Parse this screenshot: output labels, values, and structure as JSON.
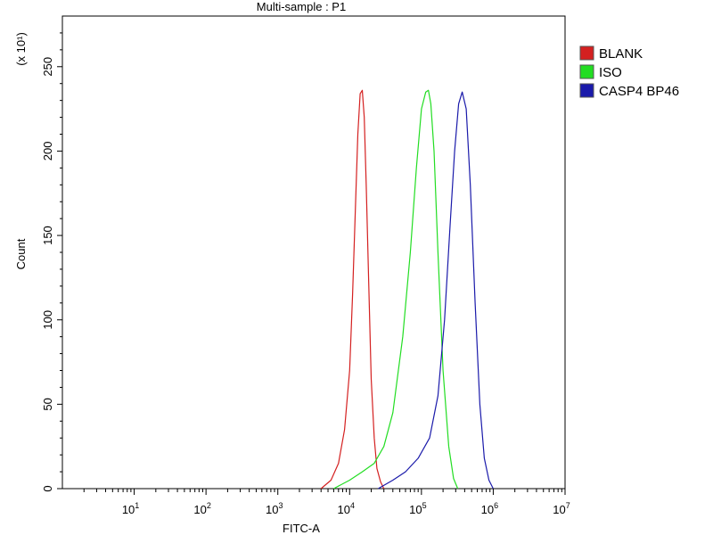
{
  "chart_data": {
    "type": "line",
    "title": "Multi-sample : P1",
    "xlabel": "FITC-A",
    "ylabel": "Count",
    "y_multiplier": "(x 10¹)",
    "x_scale": "log",
    "xlim": [
      1,
      10000000
    ],
    "ylim": [
      0,
      280
    ],
    "x_ticks": [
      {
        "value": 10,
        "base": "10",
        "exp": "1"
      },
      {
        "value": 100,
        "base": "10",
        "exp": "2"
      },
      {
        "value": 1000,
        "base": "10",
        "exp": "3"
      },
      {
        "value": 10000,
        "base": "10",
        "exp": "4"
      },
      {
        "value": 100000,
        "base": "10",
        "exp": "5"
      },
      {
        "value": 1000000,
        "base": "10",
        "exp": "6"
      },
      {
        "value": 10000000,
        "base": "10",
        "exp": "7"
      }
    ],
    "y_ticks": [
      0,
      50,
      100,
      150,
      200,
      250
    ],
    "grid": false,
    "legend": "right",
    "series": [
      {
        "name": "BLANK",
        "color": "#d42020",
        "x": [
          4000,
          5500,
          7000,
          8500,
          10000,
          11000,
          12000,
          13000,
          14000,
          15000,
          16000,
          17000,
          18500,
          20000,
          22000,
          24000,
          27000,
          30000
        ],
        "y": [
          0,
          5,
          15,
          35,
          70,
          115,
          165,
          210,
          234,
          236,
          220,
          180,
          120,
          65,
          30,
          12,
          4,
          0
        ]
      },
      {
        "name": "ISO",
        "color": "#22dd22",
        "x": [
          6000,
          10000,
          15000,
          22000,
          30000,
          40000,
          55000,
          70000,
          85000,
          100000,
          115000,
          125000,
          135000,
          150000,
          170000,
          200000,
          240000,
          280000,
          320000
        ],
        "y": [
          0,
          5,
          10,
          15,
          25,
          45,
          90,
          140,
          190,
          225,
          235,
          236,
          228,
          200,
          140,
          70,
          25,
          6,
          0
        ]
      },
      {
        "name": "CASP4 BP46",
        "color": "#1a1aaa",
        "x": [
          25000,
          40000,
          60000,
          90000,
          130000,
          170000,
          210000,
          250000,
          290000,
          330000,
          370000,
          420000,
          480000,
          560000,
          650000,
          750000,
          870000,
          1000000
        ],
        "y": [
          0,
          5,
          10,
          18,
          30,
          55,
          100,
          155,
          200,
          228,
          235,
          225,
          180,
          110,
          50,
          18,
          5,
          0
        ]
      }
    ]
  }
}
